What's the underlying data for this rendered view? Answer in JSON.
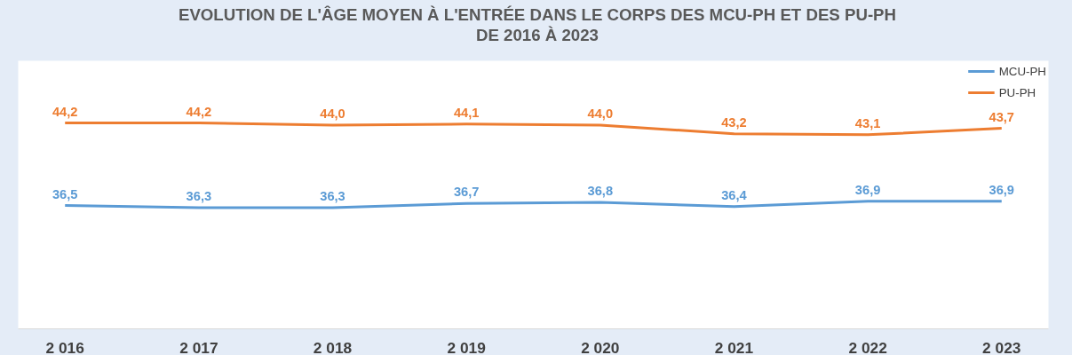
{
  "chart_data": {
    "type": "line",
    "title": "EVOLUTION DE L'ÂGE MOYEN À L'ENTRÉE DANS LE CORPS DES MCU-PH ET DES PU-PH\nDE 2016 À 2023",
    "categories": [
      "2 016",
      "2 017",
      "2 018",
      "2 019",
      "2 020",
      "2 021",
      "2 022",
      "2 023"
    ],
    "series": [
      {
        "name": "MCU-PH",
        "color": "#5b9bd5",
        "values": [
          36.5,
          36.3,
          36.3,
          36.7,
          36.8,
          36.4,
          36.9,
          36.9
        ],
        "value_labels": [
          "36,5",
          "36,3",
          "36,3",
          "36,7",
          "36,8",
          "36,4",
          "36,9",
          "36,9"
        ]
      },
      {
        "name": "PU-PH",
        "color": "#ed7d31",
        "values": [
          44.2,
          44.2,
          44.0,
          44.1,
          44.0,
          43.2,
          43.1,
          43.7
        ],
        "value_labels": [
          "44,2",
          "44,2",
          "44,0",
          "44,1",
          "44,0",
          "43,2",
          "43,1",
          "43,7"
        ]
      }
    ],
    "ylim": [
      25,
      50
    ],
    "tick_labels": "x",
    "grid": false,
    "legend": "top right"
  }
}
